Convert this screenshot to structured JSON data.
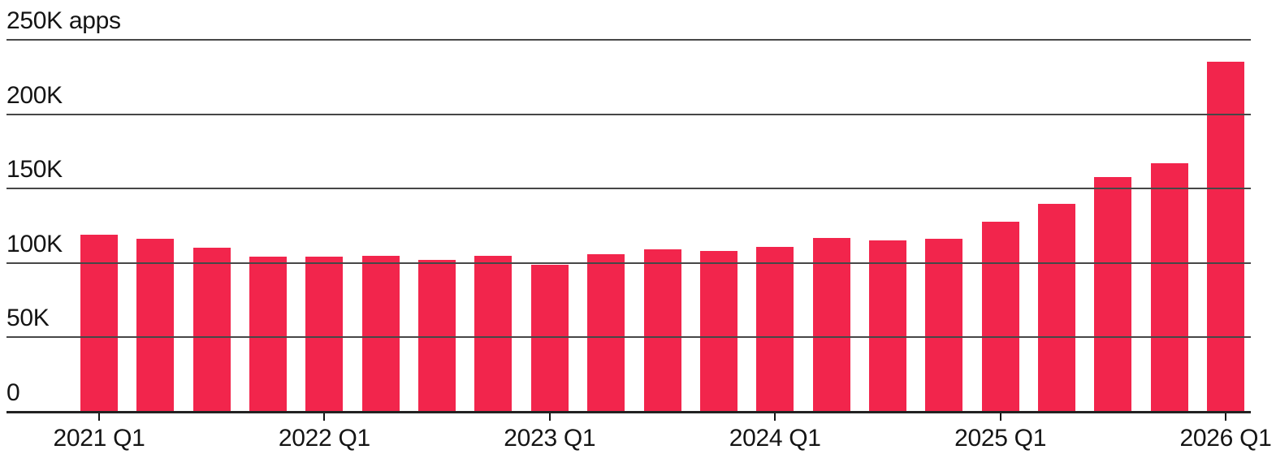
{
  "chart_data": {
    "type": "bar",
    "title": "",
    "unit_label": "apps",
    "categories": [
      "2021 Q1",
      "2021 Q2",
      "2021 Q3",
      "2021 Q4",
      "2022 Q1",
      "2022 Q2",
      "2022 Q3",
      "2022 Q4",
      "2023 Q1",
      "2023 Q2",
      "2023 Q3",
      "2023 Q4",
      "2024 Q1",
      "2024 Q2",
      "2024 Q3",
      "2024 Q4",
      "2025 Q1",
      "2025 Q2",
      "2025 Q3",
      "2025 Q4",
      "2026 Q1"
    ],
    "values_thousands": [
      119,
      116,
      110,
      104,
      104,
      105,
      102,
      105,
      99,
      106,
      109,
      108,
      111,
      117,
      115,
      116,
      128,
      140,
      158,
      167,
      235
    ],
    "yticks": [
      {
        "value": 250,
        "label": "250K apps"
      },
      {
        "value": 200,
        "label": "200K"
      },
      {
        "value": 150,
        "label": "150K"
      },
      {
        "value": 100,
        "label": "100K"
      },
      {
        "value": 50,
        "label": "50K"
      },
      {
        "value": 0,
        "label": "0"
      }
    ],
    "xticks": [
      "2021 Q1",
      "2022 Q1",
      "2023 Q1",
      "2024 Q1",
      "2025 Q1",
      "2026 Q1"
    ],
    "ylim": [
      0,
      250
    ],
    "grid": "horizontal",
    "legend": "none",
    "bar_color": "#F2254C",
    "grid_color": "#474747",
    "axis_color": "#222222",
    "text_color": "#141414"
  }
}
